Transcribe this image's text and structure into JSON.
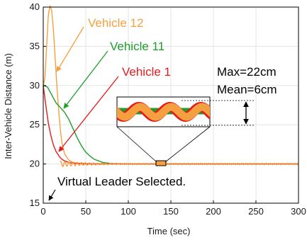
{
  "chart_data": {
    "type": "line",
    "xlabel": "Time (sec)",
    "ylabel": "Inter-Vehicle Distance (m)",
    "xlim": [
      0,
      300
    ],
    "ylim": [
      15,
      40
    ],
    "xticks": [
      0,
      50,
      100,
      150,
      200,
      250,
      300
    ],
    "yticks": [
      15,
      20,
      25,
      30,
      35,
      40
    ],
    "grid": true,
    "series": [
      {
        "name": "Vehicle 12",
        "color": "#f5a040",
        "x": [
          0,
          2,
          4,
          6,
          8,
          10,
          12,
          14,
          16,
          18,
          20,
          22,
          25,
          30,
          35,
          40,
          50,
          60,
          80,
          100,
          300
        ],
        "y": [
          30,
          31,
          35,
          39,
          40.2,
          39.5,
          37,
          33.5,
          30,
          27,
          24.5,
          22.7,
          21.3,
          20.5,
          20.2,
          20.1,
          20.05,
          20,
          20,
          20,
          20
        ]
      },
      {
        "name": "Vehicle 11",
        "color": "#1e9e2a",
        "x": [
          0,
          5,
          10,
          15,
          20,
          25,
          30,
          35,
          40,
          45,
          50,
          55,
          60,
          70,
          80,
          100,
          300
        ],
        "y": [
          30,
          29.8,
          28.8,
          27.8,
          27.2,
          26.6,
          25.7,
          24.5,
          23.3,
          22.3,
          21.5,
          21,
          20.6,
          20.2,
          20.05,
          20,
          20
        ]
      },
      {
        "name": "Vehicle 1",
        "color": "#e41a1c",
        "x": [
          0,
          3,
          6,
          9,
          12,
          15,
          18,
          20,
          22,
          25,
          30,
          35,
          40,
          50,
          60,
          80,
          100,
          300
        ],
        "y": [
          30,
          27.5,
          25.2,
          23.6,
          22.4,
          21.6,
          21.1,
          20.8,
          20.6,
          20.4,
          20.2,
          20.1,
          20.05,
          20,
          20,
          20,
          20,
          20
        ]
      }
    ],
    "series_labels": [
      "Vehicle 12",
      "Vehicle 11",
      "Vehicle 1"
    ],
    "annotations": {
      "max_text": "Max=22cm",
      "mean_text": "Mean=6cm",
      "leader_text": "Virtual Leader Selected."
    }
  }
}
